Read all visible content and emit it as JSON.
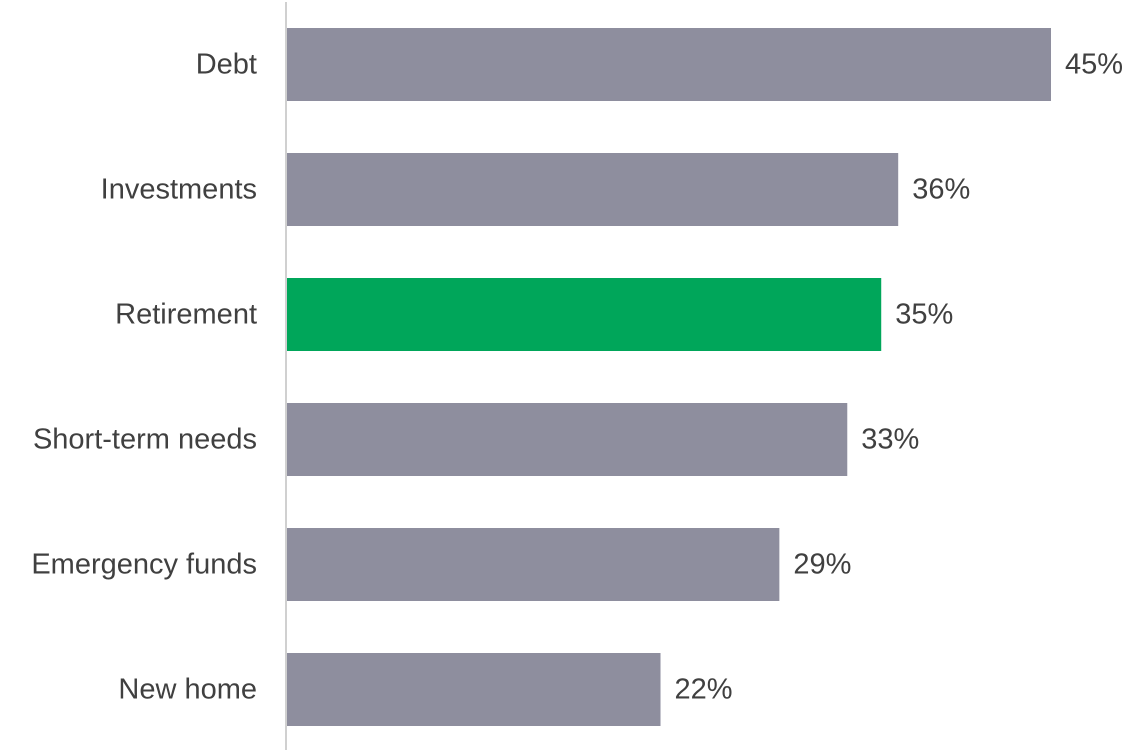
{
  "chart_data": {
    "type": "bar",
    "orientation": "horizontal",
    "categories": [
      "Debt",
      "Investments",
      "Retirement",
      "Short-term needs",
      "Emergency funds",
      "New home"
    ],
    "values": [
      45,
      36,
      35,
      33,
      29,
      22
    ],
    "value_labels": [
      "45%",
      "36%",
      "35%",
      "33%",
      "29%",
      "22%"
    ],
    "unit": "%",
    "xlim": [
      0,
      45
    ],
    "grid": false,
    "legend": "none",
    "highlight_category": "Retirement",
    "colors": {
      "default_bar": "#8e8e9e",
      "highlight_bar": "#00a65a",
      "axis": "#d0d0d0",
      "text": "#404040"
    }
  }
}
